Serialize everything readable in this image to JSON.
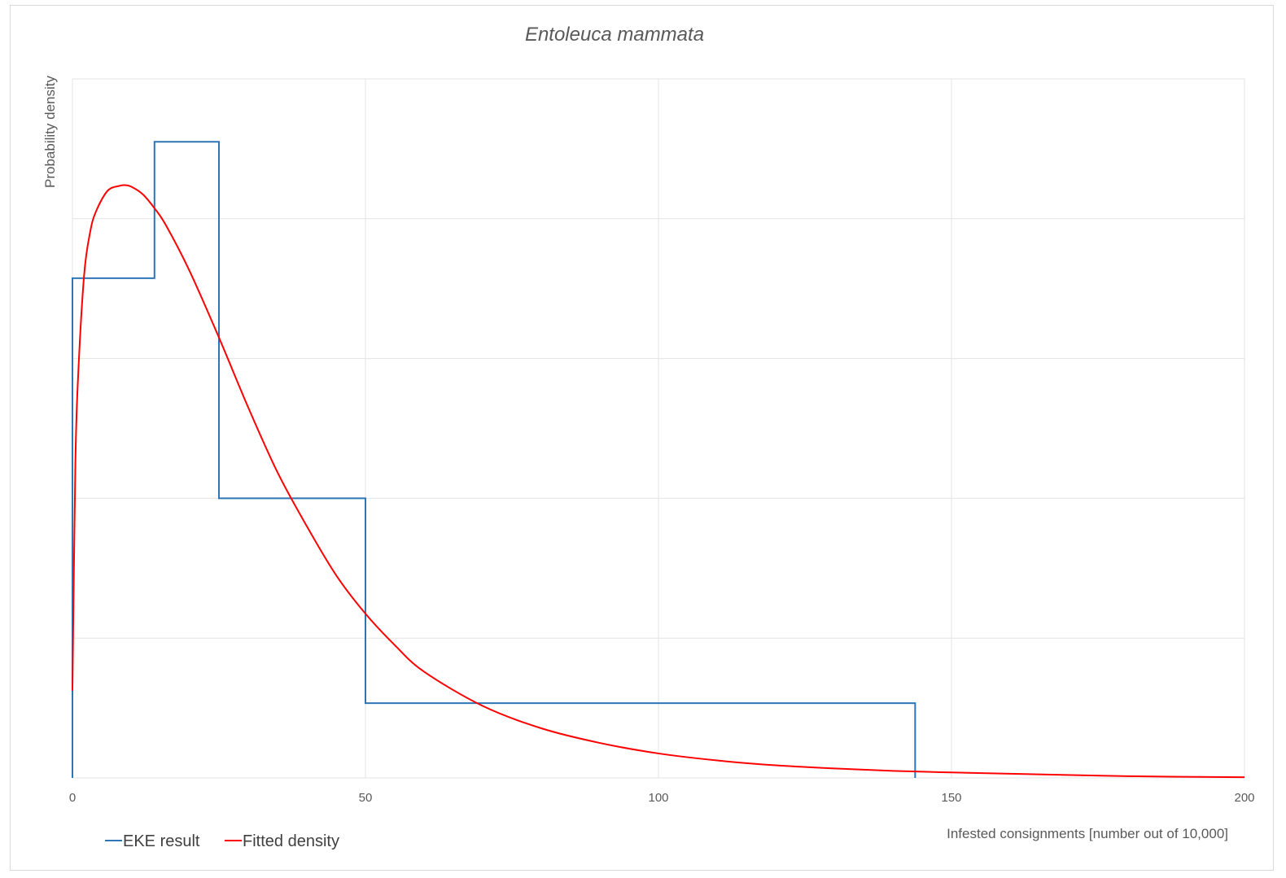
{
  "chart_data": {
    "type": "line",
    "title": "Entoleuca mammata",
    "xlabel": "Infested consignments [number out of 10,000]",
    "ylabel": "Probability density",
    "xlim": [
      0,
      200
    ],
    "ylim": [
      0,
      1
    ],
    "x_ticks": [
      "0",
      "50",
      "100",
      "150",
      "200"
    ],
    "y_gridlines": 5,
    "grid": true,
    "legend": "bottom-left",
    "series": [
      {
        "name": "EKE result",
        "type": "step",
        "color": "#2e75b6",
        "bins": [
          {
            "from": 0,
            "to": 14,
            "density": 0.715
          },
          {
            "from": 14,
            "to": 25,
            "density": 0.91
          },
          {
            "from": 25,
            "to": 50,
            "density": 0.4
          },
          {
            "from": 50,
            "to": 143.8,
            "density": 0.107
          }
        ]
      },
      {
        "name": "Fitted density",
        "type": "line",
        "color": "#ff0000",
        "x": [
          0,
          0.5,
          1,
          2,
          3,
          4,
          6,
          8,
          9,
          10,
          12,
          14,
          16,
          20,
          25,
          30,
          35,
          40,
          45,
          50,
          55,
          60,
          70,
          80,
          90,
          100,
          110,
          120,
          130,
          140,
          150,
          160,
          180,
          200
        ],
        "y": [
          0.125,
          0.45,
          0.58,
          0.72,
          0.78,
          0.81,
          0.84,
          0.847,
          0.848,
          0.846,
          0.835,
          0.815,
          0.79,
          0.725,
          0.63,
          0.53,
          0.437,
          0.36,
          0.29,
          0.235,
          0.19,
          0.152,
          0.103,
          0.071,
          0.05,
          0.035,
          0.025,
          0.018,
          0.0135,
          0.01,
          0.0078,
          0.006,
          0.0025,
          0.001
        ]
      }
    ]
  }
}
